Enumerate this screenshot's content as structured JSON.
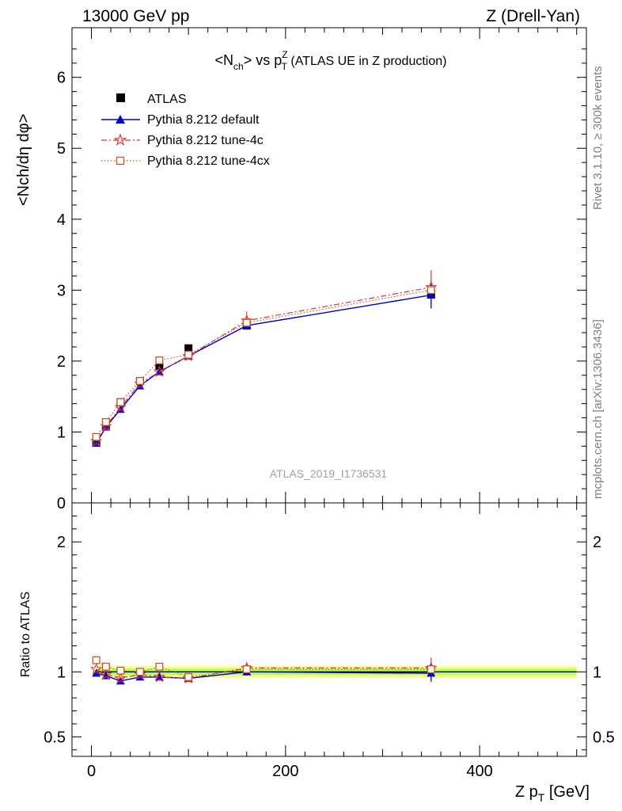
{
  "header": {
    "left": "13000 GeV pp",
    "right": "Z (Drell-Yan)"
  },
  "side_labels": {
    "rivet": "Rivet 3.1.10, ≥ 300k events",
    "mcplots": "mcplots.cern.ch [arXiv:1306.3436]"
  },
  "watermark": "ATLAS_2019_I1736531",
  "colors": {
    "atlas": "#000000",
    "default": "#0000cc",
    "tune4c": "#dd3333",
    "tune4cx": "#cc5522",
    "band_inner": "#b0ff66",
    "band_outer": "#ffff88"
  },
  "chart_data": [
    {
      "type": "line",
      "title": "<Nch> vs pTZ (ATLAS UE in Z production)",
      "title_parts": {
        "main": "<N",
        "sub1": "ch",
        "mid": "> vs p",
        "sub2": "T",
        "sup2": "Z",
        "rest": " (ATLAS UE in Z production)"
      },
      "ylabel": "<Nch/dη dφ>",
      "xlim": [
        -20,
        510
      ],
      "ylim": [
        0,
        6.7
      ],
      "yticks": [
        "0",
        "1",
        "2",
        "3",
        "4",
        "5",
        "6"
      ],
      "x": [
        5,
        15,
        30,
        50,
        70,
        100,
        160,
        350
      ],
      "legend": [
        "ATLAS",
        "Pythia 8.212 default",
        "Pythia 8.212 tune-4c",
        "Pythia 8.212 tune-4cx"
      ],
      "series": [
        {
          "name": "ATLAS",
          "values": [
            0.85,
            1.1,
            1.42,
            1.72,
            1.93,
            2.18,
            2.5,
            2.95
          ]
        },
        {
          "name": "Pythia 8.212 default",
          "values": [
            0.84,
            1.07,
            1.32,
            1.65,
            1.85,
            2.07,
            2.5,
            2.93
          ]
        },
        {
          "name": "Pythia 8.212 tune-4c",
          "values": [
            0.87,
            1.08,
            1.35,
            1.68,
            1.85,
            2.07,
            2.57,
            3.04
          ]
        },
        {
          "name": "Pythia 8.212 tune-4cx",
          "values": [
            0.93,
            1.14,
            1.42,
            1.72,
            2.01,
            2.09,
            2.54,
            3.0
          ]
        }
      ]
    },
    {
      "type": "line",
      "ylabel": "Ratio to ATLAS",
      "xlabel": "Z pT [GeV]",
      "xlabel_parts": {
        "main": "Z p",
        "sub": "T",
        "rest": " [GeV]"
      },
      "xlim": [
        -20,
        510
      ],
      "ylim": [
        0.35,
        2.3
      ],
      "xticks": [
        "0",
        "200",
        "400"
      ],
      "yticks": [
        "0.5",
        "1",
        "2"
      ],
      "x": [
        5,
        15,
        30,
        50,
        70,
        100,
        160,
        350
      ],
      "series": [
        {
          "name": "Pythia 8.212 default",
          "values": [
            0.99,
            0.97,
            0.93,
            0.96,
            0.96,
            0.95,
            1.0,
            0.99
          ]
        },
        {
          "name": "Pythia 8.212 tune-4c",
          "values": [
            1.02,
            0.98,
            0.95,
            0.98,
            0.96,
            0.95,
            1.03,
            1.03
          ]
        },
        {
          "name": "Pythia 8.212 tune-4cx",
          "values": [
            1.09,
            1.04,
            1.01,
            1.0,
            1.04,
            0.96,
            1.02,
            1.02
          ]
        }
      ]
    }
  ]
}
